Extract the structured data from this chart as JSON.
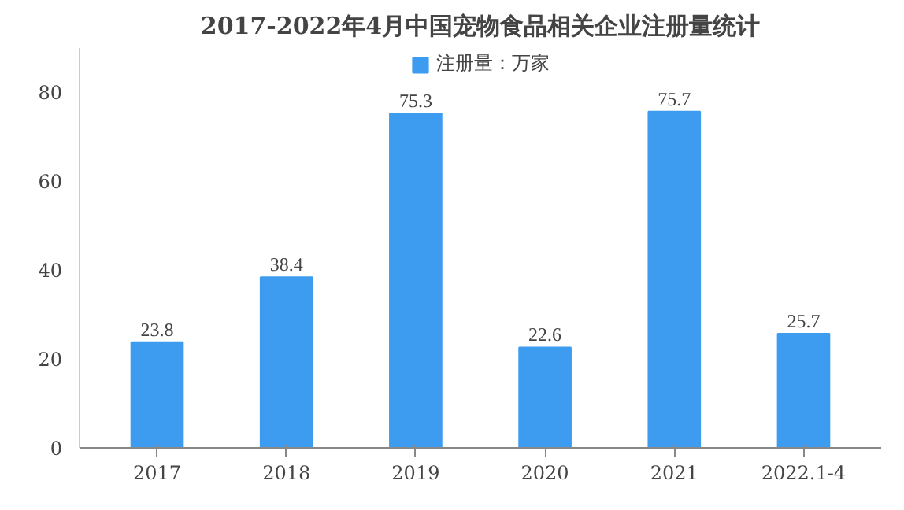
{
  "chart_data": {
    "type": "bar",
    "title": "2017-2022年4月中国宠物食品相关企业注册量统计",
    "categories": [
      "2017",
      "2018",
      "2019",
      "2020",
      "2021",
      "2022.1-4"
    ],
    "series": [
      {
        "name": "注册量：万家",
        "color": "#3d9cf0",
        "values": [
          23.8,
          38.4,
          75.3,
          22.6,
          75.7,
          25.7
        ]
      }
    ],
    "ylim": [
      0,
      90
    ],
    "yticks": [
      0,
      20,
      40,
      60,
      80
    ],
    "data_labels": true,
    "legend": "top",
    "grid": false
  }
}
